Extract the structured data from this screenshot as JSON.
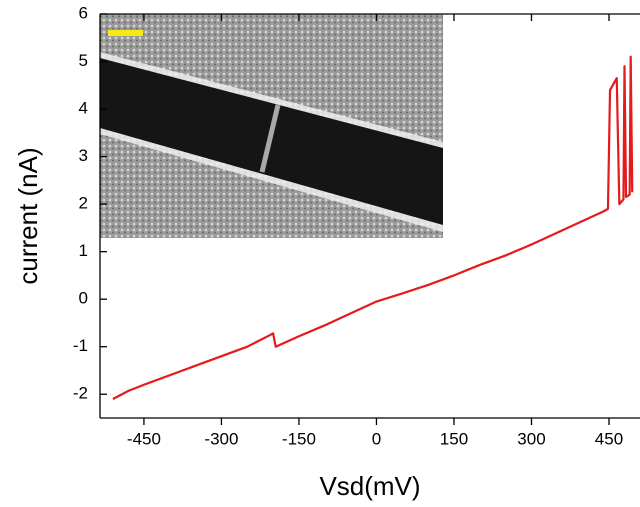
{
  "chart_data": {
    "type": "line",
    "x_label": "Vsd(mV)",
    "y_label": "current (nA)",
    "xlim": [
      -535,
      510
    ],
    "ylim": [
      -2.5,
      6
    ],
    "xticks": [
      -450,
      -300,
      -150,
      0,
      150,
      300,
      450
    ],
    "yticks": [
      -2,
      -1,
      0,
      1,
      2,
      3,
      4,
      5,
      6
    ],
    "x": [
      -510,
      -480,
      -450,
      -400,
      -350,
      -300,
      -250,
      -205,
      -200,
      -195,
      -150,
      -100,
      -50,
      0,
      50,
      100,
      150,
      200,
      250,
      300,
      350,
      400,
      440,
      448,
      452,
      465,
      470,
      478,
      480,
      483,
      490,
      492,
      495
    ],
    "series": [
      {
        "color": "#e41a1c",
        "values": [
          -2.1,
          -1.93,
          -1.8,
          -1.6,
          -1.4,
          -1.2,
          -1.0,
          -0.75,
          -0.72,
          -1.0,
          -0.78,
          -0.55,
          -0.3,
          -0.05,
          0.12,
          0.3,
          0.5,
          0.72,
          0.92,
          1.15,
          1.4,
          1.65,
          1.85,
          1.9,
          4.4,
          4.65,
          2.0,
          2.1,
          4.9,
          2.15,
          2.2,
          5.1,
          2.25
        ]
      }
    ]
  }
}
